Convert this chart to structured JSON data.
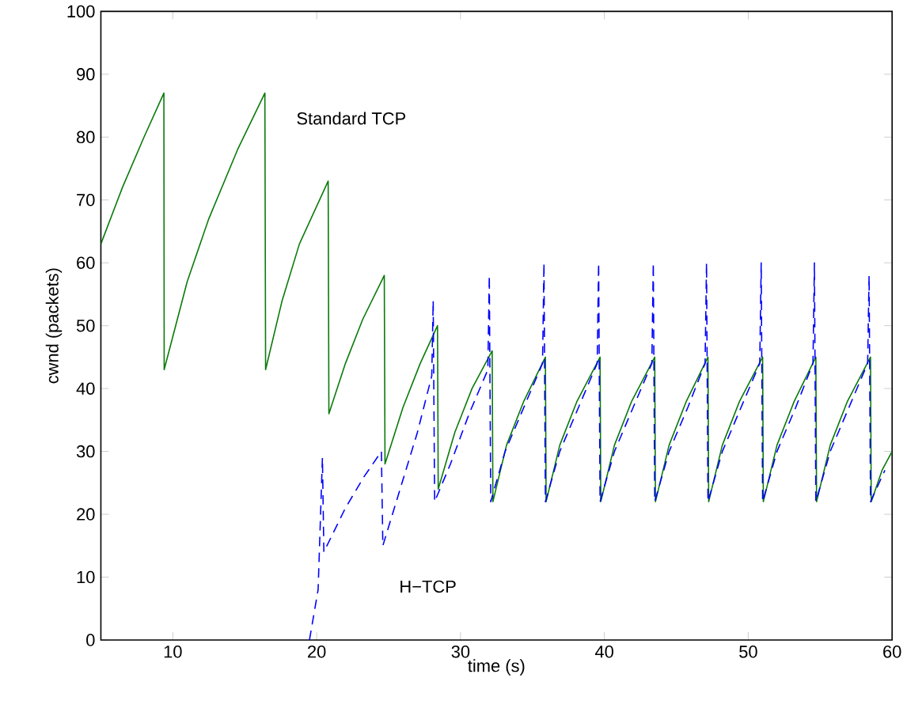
{
  "chart_data": {
    "type": "line",
    "xlabel": "time (s)",
    "ylabel": "cwnd (packets)",
    "xlim": [
      5,
      60
    ],
    "ylim": [
      0,
      100
    ],
    "xticks": [
      10,
      20,
      30,
      40,
      50,
      60
    ],
    "yticks": [
      0,
      10,
      20,
      30,
      40,
      50,
      60,
      70,
      80,
      90,
      100
    ],
    "grid": false,
    "legend": false,
    "marker": "none",
    "series": [
      {
        "name": "Standard TCP",
        "color": "#0a7a0a",
        "line_style": "solid",
        "x": [
          5,
          6.5,
          8,
          9.38,
          9.4,
          11,
          12.5,
          14.5,
          16.4,
          16.45,
          17.6,
          18.8,
          20.8,
          20.85,
          22,
          23.2,
          24.7,
          24.75,
          26,
          27.2,
          28.4,
          28.45,
          29.6,
          30.8,
          32.2,
          32.25,
          33.2,
          34.4,
          35.9,
          35.95,
          36.9,
          38.1,
          39.7,
          39.75,
          40.7,
          41.9,
          43.5,
          43.55,
          44.5,
          45.7,
          47.2,
          47.25,
          48.2,
          49.4,
          51,
          51.05,
          52,
          53.2,
          54.7,
          54.75,
          55.7,
          56.9,
          58.5,
          58.55,
          59.3,
          60
        ],
        "values": [
          63,
          72,
          80,
          87,
          43,
          57,
          67,
          78,
          87,
          43,
          54,
          63,
          73,
          36,
          44,
          51,
          58,
          28,
          37,
          44,
          50,
          24,
          33,
          40,
          46,
          22,
          31,
          38,
          45,
          22,
          31,
          38,
          45,
          22,
          31,
          38,
          45,
          22,
          31,
          38,
          45,
          22,
          31,
          38,
          45,
          22,
          31,
          38,
          45,
          22,
          31,
          38,
          45,
          22,
          27,
          30
        ]
      },
      {
        "name": "H−TCP",
        "color": "#0000ff",
        "line_style": "dashed",
        "x": [
          19.5,
          20.1,
          20.4,
          20.5,
          22,
          23.3,
          24.5,
          24.6,
          25.8,
          27,
          28,
          28.1,
          28.2,
          29.3,
          30.6,
          31.9,
          32,
          32.1,
          33.1,
          34.4,
          35.7,
          35.8,
          35.9,
          36.9,
          38.2,
          39.5,
          39.6,
          39.7,
          40.7,
          42,
          43.3,
          43.4,
          43.5,
          44.5,
          45.8,
          47,
          47.1,
          47.2,
          48.2,
          49.5,
          50.8,
          50.9,
          51,
          52,
          53.3,
          54.5,
          54.6,
          54.7,
          55.7,
          57,
          58.3,
          58.4,
          58.5,
          59.5
        ],
        "values": [
          0,
          8,
          29,
          14,
          21,
          26,
          30,
          15,
          24,
          33,
          42,
          54,
          22,
          28,
          36,
          43,
          58,
          22,
          30,
          37,
          44,
          60,
          22,
          30,
          37,
          44,
          60,
          22,
          30,
          37,
          44,
          60,
          22,
          30,
          37,
          44,
          60,
          22,
          30,
          37,
          44,
          60,
          22,
          30,
          37,
          44,
          60,
          22,
          30,
          37,
          44,
          58,
          22,
          27
        ]
      }
    ]
  }
}
